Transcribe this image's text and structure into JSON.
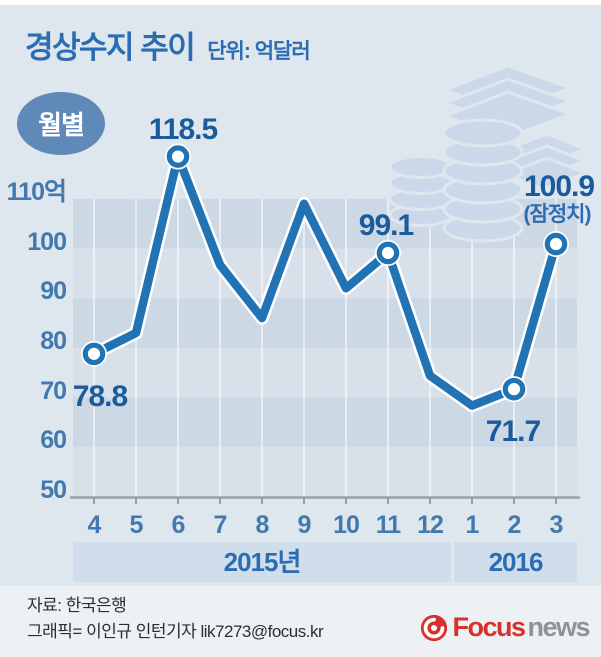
{
  "header": {
    "title": "경상수지 추이",
    "unit": "단위: 억달러",
    "badge": "월별"
  },
  "chart_data": {
    "type": "line",
    "title": "경상수지 추이",
    "unit": "억달러",
    "categories": [
      "4",
      "5",
      "6",
      "7",
      "8",
      "9",
      "10",
      "11",
      "12",
      "1",
      "2",
      "3"
    ],
    "values": [
      78.8,
      83,
      118.5,
      96.7,
      86,
      109,
      92,
      99.1,
      74.4,
      68.4,
      71.7,
      100.9
    ],
    "labeled_points": [
      {
        "index": 0,
        "label": "78.8",
        "placement": "below",
        "dx": 6
      },
      {
        "index": 2,
        "label": "118.5",
        "placement": "above",
        "dx": 5
      },
      {
        "index": 7,
        "label": "99.1",
        "placement": "above",
        "dx": -2
      },
      {
        "index": 10,
        "label": "71.7",
        "placement": "below",
        "dx": -1
      },
      {
        "index": 11,
        "label": "100.9",
        "sublabel": "(잠정치)",
        "placement": "above",
        "dx": 3
      }
    ],
    "marker_indices": [
      0,
      2,
      7,
      10,
      11
    ],
    "y_ticks": [
      {
        "value": 110,
        "label": "110억"
      },
      {
        "value": 100,
        "label": "100"
      },
      {
        "value": 90,
        "label": "90"
      },
      {
        "value": 80,
        "label": "80"
      },
      {
        "value": 70,
        "label": "70"
      },
      {
        "value": 60,
        "label": "60"
      },
      {
        "value": 50,
        "label": "50"
      }
    ],
    "ylim": [
      50,
      120
    ],
    "grid": "alternating-horizontal-bands",
    "legend_position": "none",
    "x_axis_year_bands": [
      {
        "label": "2015년",
        "from_index": 0,
        "to_index": 8
      },
      {
        "label": "2016",
        "from_index": 9,
        "to_index": 11
      }
    ]
  },
  "colors": {
    "panel_bg": "#dee7ee",
    "band_dark": "#ccd8e4",
    "band_light": "#d8e1ea",
    "gridline": "rgba(255,255,255,0.55)",
    "axis": "#97a1a9",
    "line": "#2273b3",
    "marker_fill": "#ffffff",
    "value_label": "#1b5a9b",
    "axis_label": "#4279ae",
    "title_blue": "#2b6cb2",
    "badge_bg": "#5e89b9",
    "watermark": "#cad8e9",
    "logo_red": "#d7312e",
    "logo_gray": "#8e9396"
  },
  "footer": {
    "source": "자료: 한국은행",
    "credit": "그래픽= 이인규 인턴기자 lik7273@focus.kr",
    "logo_focus": "Focus",
    "logo_news": "news"
  }
}
